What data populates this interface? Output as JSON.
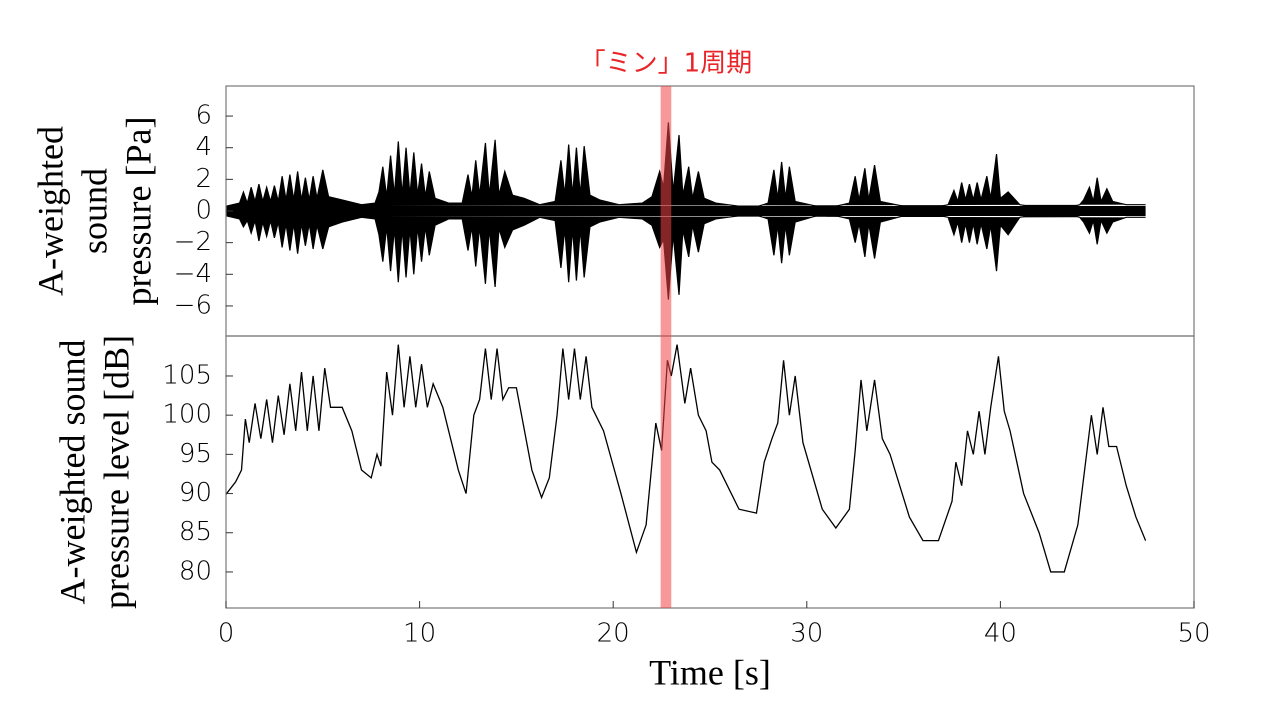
{
  "chart_data": [
    {
      "type": "area",
      "annotations": [
        {
          "text": "「ミン」1周期",
          "xspan": [
            22.45,
            23.0
          ],
          "color": "#e8262a",
          "fill": "rgba(240,70,70,0.55)"
        }
      ],
      "ylabel": [
        "A-weighted",
        "sound",
        "pressure [Pa]"
      ],
      "xlim": [
        0,
        50
      ],
      "ylim": [
        -7.9,
        7.9
      ],
      "yticks": [
        {
          "value": -6,
          "label": "−6"
        },
        {
          "value": -4,
          "label": "−4"
        },
        {
          "value": -2,
          "label": "−2"
        },
        0,
        2,
        4,
        6
      ],
      "x": [
        0,
        0.7,
        0.9,
        1.1,
        1.3,
        1.5,
        1.7,
        1.9,
        2.1,
        2.3,
        2.5,
        2.7,
        2.9,
        3.1,
        3.3,
        3.5,
        3.7,
        3.9,
        4.1,
        4.3,
        4.5,
        4.7,
        5.0,
        5.3,
        6.0,
        7.0,
        7.7,
        7.9,
        8.1,
        8.3,
        8.5,
        8.7,
        8.9,
        9.1,
        9.3,
        9.5,
        9.7,
        9.9,
        10.1,
        10.3,
        10.5,
        10.8,
        11.5,
        12.2,
        12.5,
        12.7,
        12.9,
        13.1,
        13.4,
        13.6,
        13.9,
        14.1,
        14.4,
        14.8,
        15.4,
        16.2,
        17.0,
        17.3,
        17.5,
        17.7,
        17.9,
        18.1,
        18.3,
        18.5,
        18.8,
        19.3,
        20.3,
        21.5,
        22.0,
        22.4,
        22.6,
        22.85,
        23.1,
        23.4,
        23.6,
        23.9,
        24.1,
        24.4,
        24.7,
        25.3,
        26.5,
        27.5,
        28.0,
        28.3,
        28.5,
        28.7,
        28.9,
        29.1,
        29.4,
        30.5,
        31.5,
        32.2,
        32.5,
        32.7,
        33.0,
        33.2,
        33.5,
        33.8,
        35.0,
        36.5,
        37.3,
        37.6,
        37.8,
        38.0,
        38.2,
        38.4,
        38.6,
        38.8,
        39.0,
        39.3,
        39.5,
        39.8,
        40.0,
        40.4,
        41.0,
        42.0,
        43.5,
        44.1,
        44.3,
        44.6,
        44.8,
        45.0,
        45.2,
        45.5,
        45.8,
        46.5,
        47.5
      ],
      "series": [
        {
          "color": "#000000",
          "values": [
            0.3,
            0.5,
            1.2,
            0.5,
            1.5,
            0.6,
            1.7,
            0.6,
            1.5,
            0.6,
            1.6,
            0.6,
            2.2,
            0.7,
            2.3,
            0.7,
            2.5,
            0.7,
            2.1,
            0.7,
            2.2,
            0.8,
            2.6,
            0.9,
            0.7,
            0.4,
            0.5,
            1.2,
            2.8,
            0.9,
            3.5,
            1.0,
            4.4,
            1.0,
            4.0,
            1.0,
            3.7,
            1.0,
            3.0,
            0.9,
            2.5,
            0.8,
            0.5,
            0.5,
            2.3,
            0.9,
            3.2,
            1.0,
            4.3,
            1.0,
            4.5,
            1.0,
            2.5,
            1.0,
            0.8,
            0.4,
            0.6,
            3.2,
            1.0,
            4.2,
            1.0,
            4.0,
            1.0,
            4.1,
            1.0,
            0.7,
            0.4,
            0.5,
            0.9,
            2.5,
            1.5,
            5.6,
            1.2,
            4.8,
            1.0,
            2.8,
            0.8,
            2.5,
            0.8,
            0.5,
            0.3,
            0.3,
            0.5,
            2.6,
            0.8,
            3.1,
            0.8,
            2.8,
            0.6,
            0.3,
            0.3,
            0.5,
            2.2,
            0.7,
            2.7,
            0.7,
            2.9,
            0.6,
            0.3,
            0.2,
            0.4,
            1.3,
            0.6,
            1.8,
            0.7,
            1.7,
            0.7,
            1.8,
            0.7,
            2.2,
            0.8,
            3.6,
            0.8,
            1.2,
            0.4,
            0.2,
            0.2,
            0.4,
            0.7,
            1.5,
            0.6,
            2.1,
            0.6,
            1.4,
            0.6,
            0.4,
            0.4
          ]
        },
        {
          "color": "#000000",
          "values": [
            -0.3,
            -0.5,
            -1.0,
            -0.6,
            -1.4,
            -0.6,
            -1.9,
            -0.7,
            -1.6,
            -0.6,
            -1.7,
            -0.7,
            -2.3,
            -0.8,
            -2.5,
            -0.8,
            -2.7,
            -0.8,
            -2.2,
            -0.8,
            -2.4,
            -0.9,
            -2.4,
            -1.0,
            -0.7,
            -0.4,
            -0.5,
            -1.5,
            -3.2,
            -1.0,
            -3.8,
            -1.1,
            -4.5,
            -1.1,
            -4.2,
            -1.1,
            -4.0,
            -1.0,
            -3.2,
            -1.0,
            -2.8,
            -0.9,
            -0.5,
            -0.5,
            -2.5,
            -1.0,
            -3.5,
            -1.0,
            -4.6,
            -1.1,
            -4.8,
            -1.1,
            -2.3,
            -1.2,
            -0.9,
            -0.4,
            -0.6,
            -3.6,
            -1.1,
            -4.5,
            -1.1,
            -4.4,
            -1.1,
            -4.2,
            -1.0,
            -0.7,
            -0.4,
            -0.5,
            -0.9,
            -2.3,
            -1.8,
            -5.6,
            -1.5,
            -5.3,
            -1.2,
            -2.9,
            -0.9,
            -2.6,
            -0.8,
            -0.5,
            -0.3,
            -0.3,
            -0.5,
            -2.8,
            -0.9,
            -3.3,
            -0.9,
            -2.8,
            -0.7,
            -0.3,
            -0.3,
            -0.5,
            -2.0,
            -0.8,
            -2.9,
            -0.8,
            -3.0,
            -0.7,
            -0.3,
            -0.2,
            -0.4,
            -1.5,
            -0.7,
            -2.0,
            -0.8,
            -2.0,
            -0.8,
            -2.1,
            -0.8,
            -2.4,
            -0.9,
            -3.8,
            -0.9,
            -1.5,
            -0.4,
            -0.2,
            -0.2,
            -0.4,
            -0.7,
            -1.4,
            -0.6,
            -2.1,
            -0.6,
            -1.4,
            -0.7,
            -0.4,
            -0.4
          ]
        }
      ]
    },
    {
      "type": "line",
      "ylabel": [
        "A-weighted sound",
        "pressure level [dB]"
      ],
      "xlabel": "Time [s]",
      "xlim": [
        0,
        50
      ],
      "xticks": [
        0,
        10,
        20,
        30,
        40,
        50
      ],
      "ylim": [
        75.4,
        110.1
      ],
      "yticks": [
        80,
        85,
        90,
        95,
        100,
        105
      ],
      "x": [
        0,
        0.5,
        0.8,
        1.0,
        1.2,
        1.5,
        1.8,
        2.1,
        2.4,
        2.7,
        3.0,
        3.3,
        3.6,
        3.9,
        4.2,
        4.5,
        4.8,
        5.1,
        5.4,
        6.0,
        6.5,
        7.0,
        7.5,
        7.8,
        8.0,
        8.3,
        8.6,
        8.9,
        9.2,
        9.5,
        9.8,
        10.1,
        10.4,
        10.7,
        11.2,
        12.0,
        12.4,
        12.8,
        13.1,
        13.4,
        13.7,
        14.0,
        14.3,
        14.6,
        15.0,
        15.8,
        16.3,
        16.7,
        17.1,
        17.4,
        17.7,
        18.0,
        18.3,
        18.6,
        18.9,
        19.5,
        20.4,
        21.2,
        21.7,
        22.2,
        22.5,
        22.8,
        23.0,
        23.3,
        23.7,
        24.0,
        24.4,
        24.8,
        25.1,
        25.5,
        26.5,
        27.4,
        27.8,
        28.2,
        28.5,
        28.8,
        29.1,
        29.4,
        29.8,
        30.8,
        31.5,
        32.2,
        32.5,
        32.8,
        33.1,
        33.5,
        33.9,
        34.3,
        35.3,
        36.0,
        36.8,
        37.5,
        37.7,
        38.0,
        38.3,
        38.6,
        38.9,
        39.2,
        39.5,
        39.9,
        40.2,
        40.5,
        41.2,
        42.0,
        42.6,
        43.3,
        44.0,
        44.4,
        44.7,
        45.0,
        45.3,
        45.6,
        46.0,
        46.5,
        47.0,
        47.5
      ],
      "series": [
        {
          "color": "#000000",
          "values": [
            89.9,
            91.5,
            93,
            99.5,
            96.5,
            101.5,
            97,
            102,
            96.5,
            102.5,
            97.5,
            104,
            98,
            105.5,
            98,
            105,
            98,
            106,
            101,
            101,
            98,
            93,
            92,
            95,
            93.5,
            105.5,
            100,
            109,
            101,
            107.5,
            101,
            106.5,
            101,
            104,
            101,
            93,
            90,
            100,
            102,
            108.5,
            102,
            108.5,
            102,
            103.5,
            103.5,
            93,
            89.5,
            92,
            100,
            108.5,
            102,
            108.5,
            102,
            107.5,
            101,
            98,
            90,
            82.5,
            86,
            99,
            95.5,
            107,
            105,
            109,
            101.5,
            106,
            100,
            98,
            94,
            93,
            88,
            87.5,
            94,
            97,
            99,
            107,
            100,
            105,
            96.5,
            88,
            85.6,
            88,
            95.5,
            104.5,
            98,
            104.5,
            97,
            95,
            87,
            84,
            84,
            89,
            94,
            91,
            98,
            95,
            100.5,
            95,
            101,
            107.5,
            100.5,
            98,
            90,
            85,
            80,
            80,
            86,
            94,
            100,
            95,
            101,
            96,
            96,
            91,
            87,
            84
          ]
        }
      ]
    }
  ]
}
